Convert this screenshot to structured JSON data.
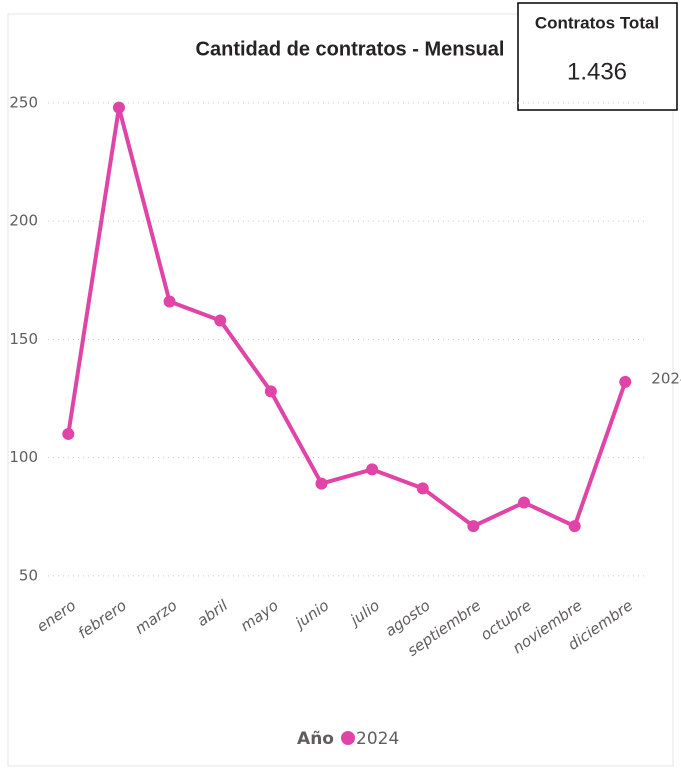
{
  "chart_data": {
    "type": "line",
    "title": "Cantidad de contratos - Mensual",
    "categories": [
      "enero",
      "febrero",
      "marzo",
      "abril",
      "mayo",
      "junio",
      "julio",
      "agosto",
      "septiembre",
      "octubre",
      "noviembre",
      "diciembre"
    ],
    "series": [
      {
        "name": "2024",
        "color": "#e044a7",
        "values": [
          110,
          248,
          166,
          158,
          128,
          89,
          95,
          87,
          71,
          81,
          71,
          132
        ]
      }
    ],
    "ylim": [
      44,
      258
    ],
    "yticks": [
      50,
      100,
      150,
      200,
      250
    ],
    "grid": true,
    "legend_title": "Año",
    "legend": "bottom"
  },
  "card": {
    "title": "Contratos Total",
    "value": "1.436"
  }
}
